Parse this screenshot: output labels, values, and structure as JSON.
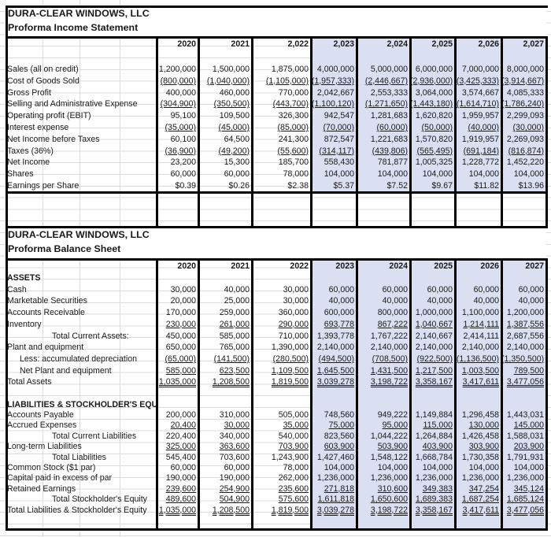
{
  "income": {
    "company": "DURA-CLEAR WINDOWS, LLC",
    "title": "Proforma Income Statement",
    "years": [
      "2020",
      "2021",
      "2,022",
      "2,023",
      "2,024",
      "2,025",
      "2,026",
      "2,027"
    ],
    "rows": [
      {
        "label": "Sales (all on credit)",
        "values": [
          "1,200,000",
          "1,500,000",
          "1,875,000",
          "4,000,000",
          "5,000,000",
          "6,000,000",
          "7,000,000",
          "8,000,000"
        ]
      },
      {
        "label": "Cost of Goods Sold",
        "u": true,
        "values": [
          "(800,000)",
          "(1,040,000)",
          "(1,105,000)",
          "(1,957,333)",
          "(2,446,667)",
          "(2,936,000)",
          "(3,425,333)",
          "(3,914,667)"
        ]
      },
      {
        "label": "Gross Profit",
        "values": [
          "400,000",
          "460,000",
          "770,000",
          "2,042,667",
          "2,553,333",
          "3,064,000",
          "3,574,667",
          "4,085,333"
        ]
      },
      {
        "label": "Selling and Administrative Expense",
        "u": true,
        "values": [
          "(304,900)",
          "(350,500)",
          "(443,700)",
          "(1,100,120)",
          "(1,271,650)",
          "(1,443,180)",
          "(1,614,710)",
          "(1,786,240)"
        ]
      },
      {
        "label": "Operating profit (EBIT)",
        "values": [
          "95,100",
          "109,500",
          "326,300",
          "942,547",
          "1,281,683",
          "1,620,820",
          "1,959,957",
          "2,299,093"
        ]
      },
      {
        "label": "Interest expense",
        "u": true,
        "values": [
          "(35,000)",
          "(45,000)",
          "(85,000)",
          "(70,000)",
          "(60,000)",
          "(50,000)",
          "(40,000)",
          "(30,000)"
        ]
      },
      {
        "label": "Net Income before Taxes",
        "values": [
          "60,100",
          "64,500",
          "241,300",
          "872,547",
          "1,221,683",
          "1,570,820",
          "1,919,957",
          "2,269,093"
        ]
      },
      {
        "label": "Taxes (36%)",
        "u": true,
        "values": [
          "(36,900)",
          "(49,200)",
          "(55,600)",
          "(314,117)",
          "(439,806)",
          "(565,495)",
          "(691,184)",
          "(816,874)"
        ]
      },
      {
        "label": "Net Income",
        "values": [
          "23,200",
          "15,300",
          "185,700",
          "558,430",
          "781,877",
          "1,005,325",
          "1,228,772",
          "1,452,220"
        ]
      },
      {
        "label": "Shares",
        "values": [
          "60,000",
          "60,000",
          "78,000",
          "104,000",
          "104,000",
          "104,000",
          "104,000",
          "104,000"
        ]
      },
      {
        "label": "Earnings per Share",
        "values": [
          "$0.39",
          "$0.26",
          "$2.38",
          "$5.37",
          "$7.52",
          "$9.67",
          "$11.82",
          "$13.96"
        ]
      }
    ]
  },
  "balance": {
    "company": "DURA-CLEAR WINDOWS, LLC",
    "title": "Proforma Balance Sheet",
    "years": [
      "2020",
      "2021",
      "2022",
      "2023",
      "2024",
      "2025",
      "2026",
      "2027"
    ],
    "rows": [
      {
        "label": "ASSETS",
        "heading": true
      },
      {
        "label": "Cash",
        "values": [
          "30,000",
          "40,000",
          "30,000",
          "60,000",
          "60,000",
          "60,000",
          "60,000",
          "60,000"
        ]
      },
      {
        "label": "Marketable Securities",
        "values": [
          "20,000",
          "25,000",
          "30,000",
          "40,000",
          "40,000",
          "40,000",
          "40,000",
          "40,000"
        ]
      },
      {
        "label": "Accounts Receivable",
        "values": [
          "170,000",
          "259,000",
          "360,000",
          "600,000",
          "800,000",
          "1,000,000",
          "1,100,000",
          "1,200,000"
        ]
      },
      {
        "label": "Inventory",
        "u": true,
        "values": [
          "230,000",
          "261,000",
          "290,000",
          "693,778",
          "867,222",
          "1,040,667",
          "1,214,111",
          "1,387,556"
        ]
      },
      {
        "label": "Total Current Assets:",
        "indent": 2,
        "values": [
          "450,000",
          "585,000",
          "710,000",
          "1,393,778",
          "1,767,222",
          "2,140,667",
          "2,414,111",
          "2,687,556"
        ]
      },
      {
        "label": "Plant and equipment",
        "values": [
          "650,000",
          "765,000",
          "1,390,000",
          "2,140,000",
          "2,140,000",
          "2,140,000",
          "2,140,000",
          "2,140,000"
        ]
      },
      {
        "label": "Less:  accumulated depreciation",
        "indent": 1,
        "u": true,
        "values": [
          "(65,000)",
          "(141,500)",
          "(280,500)",
          "(494,500)",
          "(708,500)",
          "(922,500)",
          "(1,136,500)",
          "(1,350,500)"
        ]
      },
      {
        "label": "Net Plant and equipment",
        "indent": 1,
        "u": true,
        "values": [
          "585,000",
          "623,500",
          "1,109,500",
          "1,645,500",
          "1,431,500",
          "1,217,500",
          "1,003,500",
          "789,500"
        ]
      },
      {
        "label": "Total Assets",
        "uu": true,
        "values": [
          "1,035,000",
          "1,208,500",
          "1,819,500",
          "3,039,278",
          "3,198,722",
          "3,358,167",
          "3,417,611",
          "3,477,056"
        ]
      },
      {
        "label": "",
        "blank": true
      },
      {
        "label": "LIABILITIES & STOCKHOLDER'S EQUITY",
        "heading": true
      },
      {
        "label": "Accounts Payable",
        "values": [
          "200,000",
          "310,000",
          "505,000",
          "748,560",
          "949,222",
          "1,149,884",
          "1,296,458",
          "1,443,031"
        ]
      },
      {
        "label": "Accrued Expenses",
        "u": true,
        "values": [
          "20,400",
          "30,000",
          "35,000",
          "75,000",
          "95,000",
          "115,000",
          "130,000",
          "145,000"
        ]
      },
      {
        "label": "Total Current Liabilities",
        "indent": 2,
        "values": [
          "220,400",
          "340,000",
          "540,000",
          "823,560",
          "1,044,222",
          "1,264,884",
          "1,426,458",
          "1,588,031"
        ]
      },
      {
        "label": "Long-term Liabilities",
        "u": true,
        "values": [
          "325,000",
          "363,600",
          "703,900",
          "603,900",
          "503,900",
          "403,900",
          "303,900",
          "203,900"
        ]
      },
      {
        "label": "Total Liabilities",
        "indent": 2,
        "values": [
          "545,400",
          "703,600",
          "1,243,900",
          "1,427,460",
          "1,548,122",
          "1,668,784",
          "1,730,358",
          "1,791,931"
        ]
      },
      {
        "label": "Common Stock ($1 par)",
        "values": [
          "60,000",
          "60,000",
          "78,000",
          "104,000",
          "104,000",
          "104,000",
          "104,000",
          "104,000"
        ]
      },
      {
        "label": "Capital paid in excess of par",
        "values": [
          "190,000",
          "190,000",
          "262,000",
          "1,236,000",
          "1,236,000",
          "1,236,000",
          "1,236,000",
          "1,236,000"
        ]
      },
      {
        "label": "Retained Earnings",
        "u": true,
        "values": [
          "239,600",
          "254,900",
          "235,600",
          "271,818",
          "310,600",
          "349,383",
          "347,254",
          "345,124"
        ]
      },
      {
        "label": "Total Stockholder's Equity",
        "indent": 2,
        "u": true,
        "values": [
          "489,600",
          "504,900",
          "575,600",
          "1,611,818",
          "1,650,600",
          "1,689,383",
          "1,687,254",
          "1,685,124"
        ]
      },
      {
        "label": "Total Liabilities & Stockholder's Equity",
        "uu": true,
        "values": [
          "1,035,000",
          "1,208,500",
          "1,819,500",
          "3,039,278",
          "3,198,722",
          "3,358,167",
          "3,417,611",
          "3,477,056"
        ]
      }
    ]
  },
  "colors": {
    "projected_fill": "#dae0f2",
    "border": "#000000",
    "gridline": "#dcdcdc"
  }
}
